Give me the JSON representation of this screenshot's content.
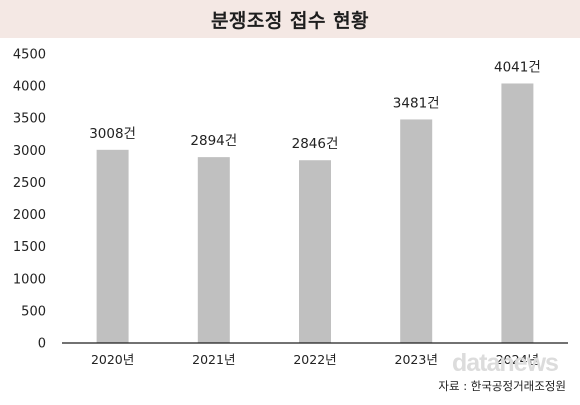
{
  "header": {
    "title": "분쟁조정 접수 현황"
  },
  "chart_data": {
    "type": "bar",
    "title": "분쟁조정 접수 현황",
    "xlabel": "",
    "ylabel": "",
    "categories": [
      "2020년",
      "2021년",
      "2022년",
      "2023년",
      "2024년"
    ],
    "values": [
      3008,
      2894,
      2846,
      3481,
      4041
    ],
    "data_labels": [
      "3008건",
      "2894건",
      "2846건",
      "3481건",
      "4041건"
    ],
    "ylim": [
      0,
      4500
    ],
    "yticks": [
      0,
      500,
      1000,
      1500,
      2000,
      2500,
      3000,
      3500,
      4000,
      4500
    ],
    "grid": false,
    "legend": "none",
    "bar_color": "#c0c0c0",
    "axis_color": "#1e1e1e"
  },
  "footer": {
    "watermark": "datanews",
    "source": "자료 : 한국공정거래조정원"
  },
  "colors": {
    "title_background": "#f4e8e4"
  }
}
